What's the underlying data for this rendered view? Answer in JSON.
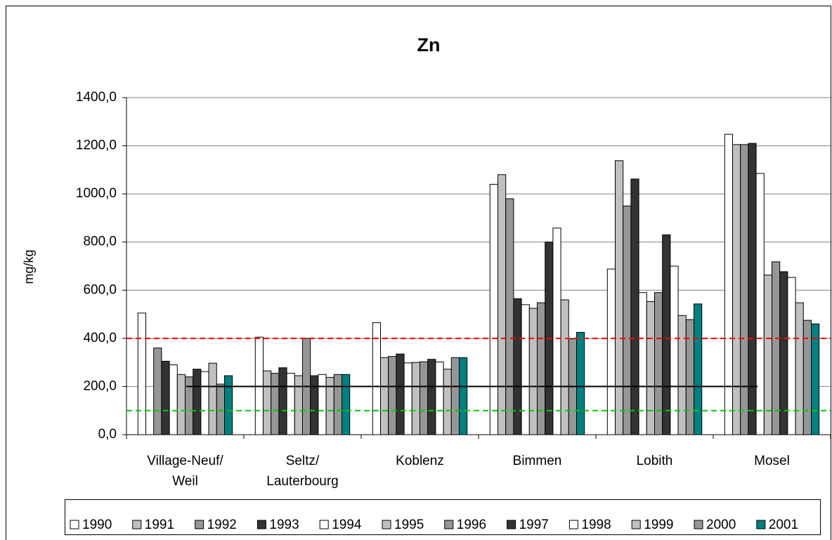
{
  "chart_data": {
    "type": "bar",
    "title": "Zn",
    "y_label": "mg/kg",
    "categories": [
      "Village-Neuf/\nWeil",
      "Seltz/\nLauterbourg",
      "Koblenz",
      "Bimmen",
      "Lobith",
      "Mosel"
    ],
    "series": [
      {
        "name": "1990",
        "color": "#ffffff",
        "values": [
          505,
          405,
          465,
          1040,
          688,
          1248
        ]
      },
      {
        "name": "1991",
        "color": "#c0c0c0",
        "values": [
          null,
          265,
          320,
          1080,
          1138,
          1205
        ]
      },
      {
        "name": "1992",
        "color": "#969696",
        "values": [
          360,
          255,
          325,
          980,
          950,
          1205
        ]
      },
      {
        "name": "1993",
        "color": "#333333",
        "values": [
          305,
          278,
          335,
          565,
          1062,
          1210
        ]
      },
      {
        "name": "1994",
        "color": "#ffffff",
        "values": [
          290,
          255,
          298,
          540,
          590,
          1085
        ]
      },
      {
        "name": "1995",
        "color": "#c0c0c0",
        "values": [
          250,
          245,
          300,
          525,
          553,
          663
        ]
      },
      {
        "name": "1996",
        "color": "#969696",
        "values": [
          240,
          400,
          303,
          548,
          590,
          718
        ]
      },
      {
        "name": "1997",
        "color": "#333333",
        "values": [
          272,
          245,
          313,
          800,
          830,
          677
        ]
      },
      {
        "name": "1998",
        "color": "#ffffff",
        "values": [
          262,
          250,
          302,
          858,
          700,
          653
        ]
      },
      {
        "name": "1999",
        "color": "#c0c0c0",
        "values": [
          297,
          238,
          272,
          560,
          495,
          548
        ]
      },
      {
        "name": "2000",
        "color": "#969696",
        "values": [
          210,
          250,
          320,
          398,
          478,
          475
        ]
      },
      {
        "name": "2001",
        "color": "#008080",
        "values": [
          245,
          250,
          320,
          425,
          543,
          460
        ]
      }
    ],
    "ylim": [
      0,
      1400
    ],
    "yticks": [
      {
        "value": 0,
        "label": "0,0"
      },
      {
        "value": 200,
        "label": "200,0"
      },
      {
        "value": 400,
        "label": "400,0"
      },
      {
        "value": 600,
        "label": "600,0"
      },
      {
        "value": 800,
        "label": "800,0"
      },
      {
        "value": 1000,
        "label": "1000,0"
      },
      {
        "value": 1200,
        "label": "1200,0"
      },
      {
        "value": 1400,
        "label": "1400,0"
      }
    ],
    "grid": true,
    "legend": "bottom",
    "reference_lines": [
      {
        "value": 400,
        "color": "#ff0000",
        "style": "dashed"
      },
      {
        "value": 200,
        "color": "#000000",
        "style": "solid"
      },
      {
        "value": 100,
        "color": "#00cc00",
        "style": "dashed"
      }
    ]
  }
}
